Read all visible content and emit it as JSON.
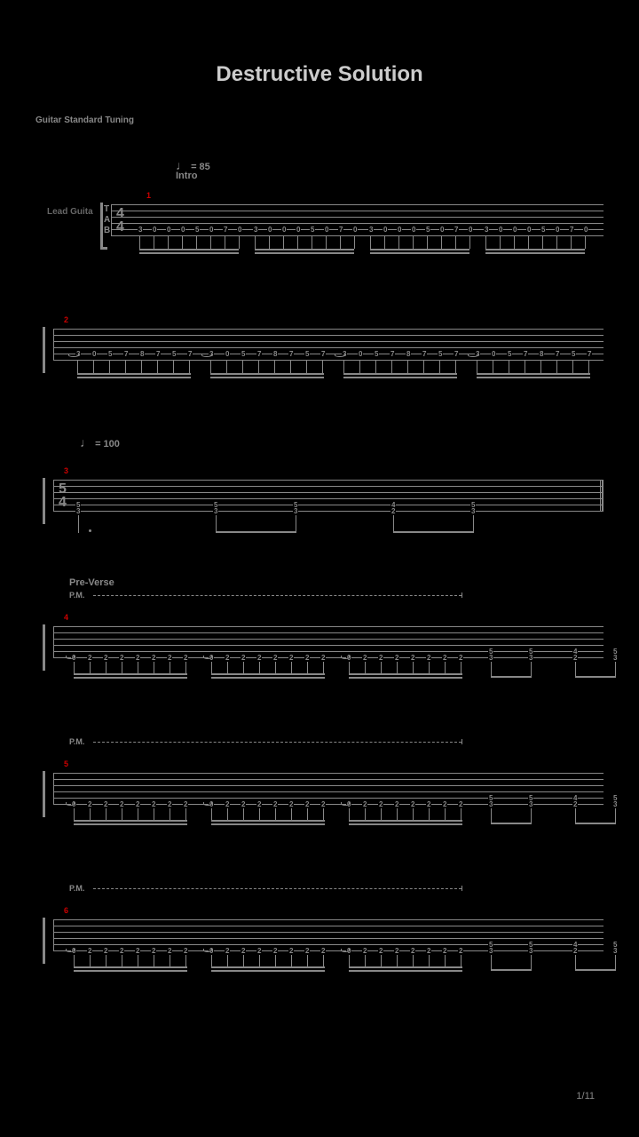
{
  "title": "Destructive Solution",
  "subtitle": "Guitar Standard Tuning",
  "tempo1": "= 85",
  "tempo1_section": "Intro",
  "tempo2": "= 100",
  "instrument": "Lead Guita",
  "time_sig_top": "4",
  "time_sig_bot": "4",
  "time_sig2_top": "5",
  "time_sig2_bot": "4",
  "section_preverse": "Pre-Verse",
  "pm_label": "P.M.",
  "page_num": "1/11",
  "m1": "1",
  "m2": "2",
  "m3": "3",
  "m4": "4",
  "m5": "5",
  "m6": "6",
  "frets_intro": [
    "3",
    "0",
    "0",
    "0",
    "5",
    "0",
    "7",
    "0",
    "8",
    "0",
    "7",
    "0",
    "5",
    "0",
    "7",
    "0"
  ],
  "frets_m3": [
    "5",
    "3",
    "5",
    "3",
    "5",
    "3",
    "4",
    "2",
    "5",
    "3"
  ],
  "frets_pv_pattern": [
    "0",
    "2",
    "2",
    "2",
    "2",
    "2",
    "2",
    "2"
  ],
  "frets_pv_end": [
    "5",
    "3",
    "5",
    "3",
    "4",
    "2",
    "5",
    "3"
  ]
}
